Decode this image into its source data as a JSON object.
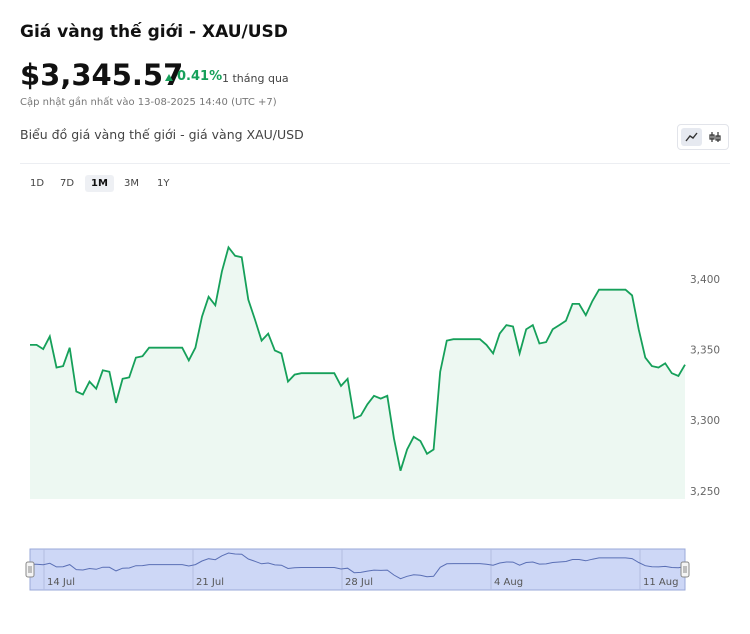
{
  "header": {
    "title": "Giá vàng thế giới - XAU/USD",
    "price": "$3,345.57",
    "change": "0.41%",
    "period": "1 tháng qua",
    "updated": "Cập nhật gần nhất vào 13-08-2025 14:40 (UTC +7)"
  },
  "chart_header": {
    "title": "Biểu đồ giá vàng thế giới - giá vàng XAU/USD"
  },
  "ranges": [
    {
      "label": "1D"
    },
    {
      "label": "7D"
    },
    {
      "label": "1M",
      "active": true
    },
    {
      "label": "3M"
    },
    {
      "label": "1Y"
    }
  ],
  "chart_data": {
    "type": "area",
    "color": "#16a05a",
    "values": [
      3354,
      3354,
      3351,
      3360,
      3338,
      3339,
      3352,
      3321,
      3319,
      3328,
      3323,
      3336,
      3335,
      3313,
      3330,
      3331,
      3345,
      3346,
      3352,
      3352,
      3352,
      3352,
      3352,
      3352,
      3343,
      3352,
      3374,
      3388,
      3382,
      3406,
      3423,
      3417,
      3416,
      3386,
      3372,
      3357,
      3362,
      3350,
      3348,
      3328,
      3333,
      3334,
      3334,
      3334,
      3334,
      3334,
      3334,
      3325,
      3330,
      3302,
      3304,
      3312,
      3318,
      3316,
      3318,
      3288,
      3265,
      3280,
      3289,
      3286,
      3277,
      3280,
      3335,
      3357,
      3358,
      3358,
      3358,
      3358,
      3358,
      3354,
      3348,
      3362,
      3368,
      3367,
      3348,
      3365,
      3368,
      3355,
      3356,
      3365,
      3368,
      3371,
      3383,
      3383,
      3375,
      3385,
      3393,
      3393,
      3393,
      3393,
      3393,
      3389,
      3365,
      3345,
      3339,
      3338,
      3341,
      3334,
      3332,
      3340
    ],
    "ylim": [
      3245,
      3460
    ],
    "yticks": [
      {
        "value": 3250,
        "label": "3,250"
      },
      {
        "value": 3300,
        "label": "3,300"
      },
      {
        "value": 3350,
        "label": "3,350"
      },
      {
        "value": 3400,
        "label": "3,400"
      }
    ],
    "navigator_labels": [
      "14 Jul",
      "21 Jul",
      "28 Jul",
      "4 Aug",
      "11 Aug"
    ]
  }
}
